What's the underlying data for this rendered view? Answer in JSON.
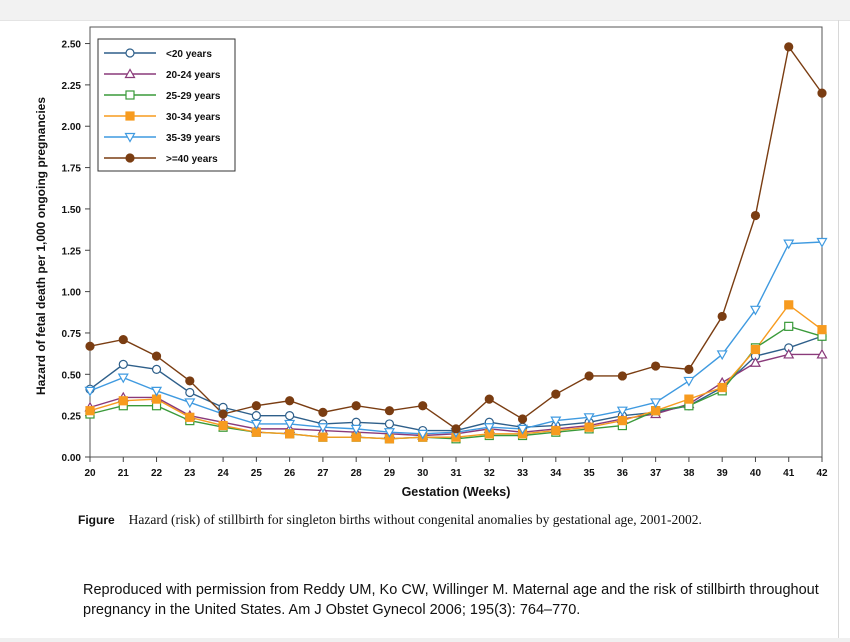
{
  "chart_data": {
    "type": "line",
    "xlabel": "Gestation (Weeks)",
    "ylabel": "Hazard of fetal death per 1,000 ongoing pregnancies",
    "x": [
      20,
      21,
      22,
      23,
      24,
      25,
      26,
      27,
      28,
      29,
      30,
      31,
      32,
      33,
      34,
      35,
      36,
      37,
      38,
      39,
      40,
      41,
      42
    ],
    "xlim": [
      20,
      42
    ],
    "ylim": [
      0,
      2.6
    ],
    "yticks": [
      "0.00",
      "0.25",
      "0.50",
      "0.75",
      "1.00",
      "1.25",
      "1.50",
      "1.75",
      "2.00",
      "2.25",
      "2.50"
    ],
    "ytick_values": [
      0,
      0.25,
      0.5,
      0.75,
      1.0,
      1.25,
      1.5,
      1.75,
      2.0,
      2.25,
      2.5
    ],
    "legend_position": "top-left",
    "grid": false,
    "series": [
      {
        "name": "<20 years",
        "color": "#2e5f8a",
        "marker": "circle-open",
        "values": [
          0.41,
          0.56,
          0.53,
          0.39,
          0.3,
          0.25,
          0.25,
          0.2,
          0.21,
          0.2,
          0.16,
          0.16,
          0.21,
          0.18,
          0.19,
          0.21,
          0.25,
          0.27,
          0.31,
          0.42,
          0.61,
          0.66,
          0.73
        ]
      },
      {
        "name": "20-24 years",
        "color": "#8a3a7a",
        "marker": "triangle-open",
        "values": [
          0.3,
          0.36,
          0.36,
          0.25,
          0.21,
          0.17,
          0.17,
          0.16,
          0.15,
          0.14,
          0.13,
          0.14,
          0.17,
          0.15,
          0.17,
          0.19,
          0.23,
          0.26,
          0.32,
          0.45,
          0.57,
          0.62,
          0.62
        ]
      },
      {
        "name": "25-29 years",
        "color": "#3a9a3a",
        "marker": "square-open",
        "values": [
          0.26,
          0.31,
          0.31,
          0.22,
          0.18,
          0.15,
          0.14,
          0.12,
          0.12,
          0.11,
          0.12,
          0.11,
          0.13,
          0.13,
          0.15,
          0.17,
          0.19,
          0.28,
          0.31,
          0.4,
          0.66,
          0.79,
          0.73
        ]
      },
      {
        "name": "30-34 years",
        "color": "#f79b1f",
        "marker": "square-filled",
        "values": [
          0.28,
          0.34,
          0.35,
          0.24,
          0.19,
          0.15,
          0.14,
          0.12,
          0.12,
          0.11,
          0.12,
          0.12,
          0.14,
          0.14,
          0.16,
          0.18,
          0.22,
          0.28,
          0.35,
          0.42,
          0.65,
          0.92,
          0.77
        ]
      },
      {
        "name": "35-39 years",
        "color": "#3f9ae0",
        "marker": "triangle-down-open",
        "values": [
          0.4,
          0.48,
          0.4,
          0.33,
          0.26,
          0.2,
          0.2,
          0.18,
          0.17,
          0.15,
          0.14,
          0.15,
          0.18,
          0.17,
          0.22,
          0.24,
          0.28,
          0.33,
          0.46,
          0.62,
          0.89,
          1.29,
          1.3
        ]
      },
      {
        "name": ">=40 years",
        "color": "#7a3d12",
        "marker": "circle-filled",
        "values": [
          0.67,
          0.71,
          0.61,
          0.46,
          0.26,
          0.31,
          0.34,
          0.27,
          0.31,
          0.28,
          0.31,
          0.17,
          0.35,
          0.23,
          0.38,
          0.49,
          0.49,
          0.55,
          0.53,
          0.85,
          1.46,
          2.48,
          2.2
        ]
      }
    ]
  },
  "caption": {
    "label": "Figure",
    "text": "Hazard (risk) of stillbirth for singleton births without congenital anomalies by gestational age, 2001-2002."
  },
  "citation": {
    "text": "Reproduced with permission  from Reddy UM, Ko CW, Willinger M. Maternal age and the risk of stillbirth throughout pregnancy in the United States.  Am J Obstet Gynecol 2006; 195(3): 764–770."
  }
}
